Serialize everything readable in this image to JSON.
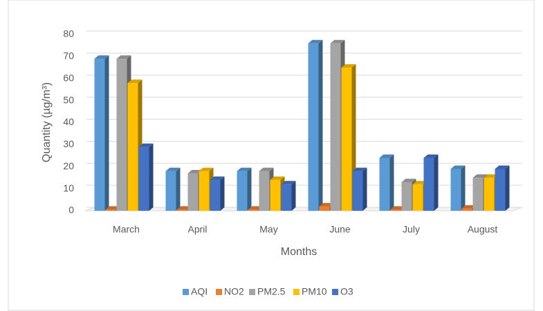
{
  "chart_data": {
    "type": "bar3d",
    "x_label": "Months",
    "y_label": "Quantity (µg/m³)",
    "categories": [
      "March",
      "April",
      "May",
      "June",
      "July",
      "August"
    ],
    "series": [
      {
        "name": "AQI",
        "color": "#5b9bd5",
        "values": [
          69,
          18,
          18,
          76,
          24,
          19
        ]
      },
      {
        "name": "NO2",
        "color": "#ed7d31",
        "values": [
          0.5,
          0.5,
          0.5,
          2,
          0.5,
          1
        ]
      },
      {
        "name": "PM2.5",
        "color": "#a5a5a5",
        "values": [
          69,
          17,
          18,
          76,
          13,
          15
        ]
      },
      {
        "name": "PM10",
        "color": "#ffc000",
        "values": [
          58,
          18,
          14,
          65,
          12,
          15
        ]
      },
      {
        "name": "O3",
        "color": "#4472c4",
        "values": [
          29,
          14,
          12,
          18,
          24,
          19
        ]
      }
    ],
    "ylim": [
      0,
      80
    ],
    "yticks": [
      0,
      10,
      20,
      30,
      40,
      50,
      60,
      70,
      80
    ],
    "grid": true,
    "legend": "bottom"
  }
}
